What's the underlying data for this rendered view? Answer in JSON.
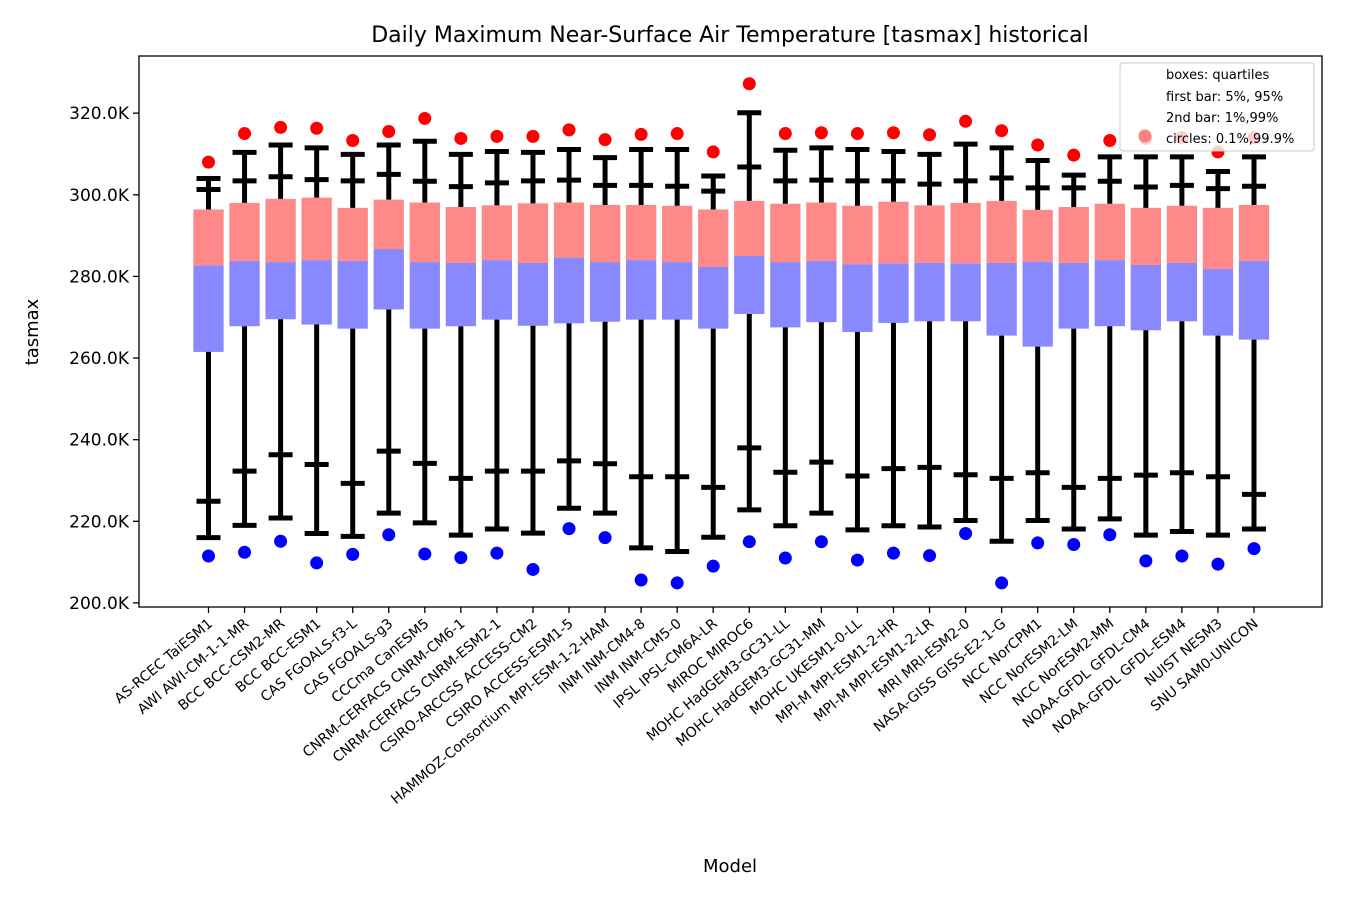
{
  "chart_data": {
    "type": "box",
    "title": "Daily Maximum Near-Surface Air Temperature [tasmax] historical",
    "xlabel": "Model",
    "ylabel": "tasmax",
    "ylim": [
      199,
      334
    ],
    "yticks": [
      200,
      220,
      240,
      260,
      280,
      300,
      320
    ],
    "ytick_labels": [
      "200.0K",
      "220.0K",
      "240.0K",
      "260.0K",
      "280.0K",
      "300.0K",
      "320.0K"
    ],
    "grid": false,
    "legend_position": "top-right",
    "legend": [
      {
        "label": "boxes: quartiles",
        "marker": "none"
      },
      {
        "label": "first bar: 5%, 95%",
        "marker": "none"
      },
      {
        "label": "2nd bar: 1%,99%",
        "marker": "none"
      },
      {
        "label": "circles: 0.1%,99.9%",
        "marker": "circle"
      }
    ],
    "colors": {
      "lower_box": "#8888ff",
      "upper_box": "#ff8888",
      "whisker": "#000000",
      "high_circle": "#ff0000",
      "low_circle": "#0000ff",
      "legend_circle": "#ff8080"
    },
    "models": [
      "AS-RCEC TaiESM1",
      "AWI AWI-CM-1-1-MR",
      "BCC BCC-CSM2-MR",
      "BCC BCC-ESM1",
      "CAS FGOALS-f3-L",
      "CAS FGOALS-g3",
      "CCCma CanESM5",
      "CNRM-CERFACS CNRM-CM6-1",
      "CNRM-CERFACS CNRM-ESM2-1",
      "CSIRO-ARCCSS ACCESS-CM2",
      "CSIRO ACCESS-ESM1-5",
      "HAMMOZ-Consortium MPI-ESM-1-2-HAM",
      "INM INM-CM4-8",
      "INM INM-CM5-0",
      "IPSL IPSL-CM6A-LR",
      "MIROC MIROC6",
      "MOHC HadGEM3-GC31-LL",
      "MOHC HadGEM3-GC31-MM",
      "MOHC UKESM1-0-LL",
      "MPI-M MPI-ESM1-2-HR",
      "MPI-M MPI-ESM1-2-LR",
      "MRI MRI-ESM2-0",
      "NASA-GISS GISS-E2-1-G",
      "NCC NorCPM1",
      "NCC NorESM2-LM",
      "NCC NorESM2-MM",
      "NOAA-GFDL GFDL-CM4",
      "NOAA-GFDL GFDL-ESM4",
      "NUIST NESM3",
      "SNU SAM0-UNICON"
    ],
    "q1": [
      261.5,
      267.8,
      269.5,
      268.2,
      267.2,
      271.9,
      267.2,
      267.8,
      269.4,
      267.9,
      268.5,
      268.9,
      269.4,
      269.4,
      267.2,
      270.8,
      267.5,
      268.8,
      266.4,
      268.6,
      269.0,
      269.0,
      265.5,
      262.8,
      267.2,
      267.8,
      266.8,
      269.0,
      265.5,
      264.5
    ],
    "median": [
      282.7,
      283.8,
      283.5,
      284.0,
      283.8,
      286.7,
      283.5,
      283.3,
      284.0,
      283.3,
      284.6,
      283.5,
      284.0,
      283.5,
      282.3,
      285.0,
      283.5,
      283.8,
      283.0,
      283.2,
      283.3,
      283.2,
      283.3,
      283.6,
      283.3,
      284.0,
      282.8,
      283.3,
      281.8,
      283.8
    ],
    "q3": [
      296.4,
      298.0,
      299.0,
      299.3,
      296.8,
      298.8,
      298.1,
      297.0,
      297.4,
      297.9,
      298.1,
      297.5,
      297.5,
      297.3,
      296.4,
      298.5,
      297.8,
      298.1,
      297.3,
      298.3,
      297.4,
      298.0,
      298.5,
      296.3,
      297.0,
      297.8,
      296.8,
      297.3,
      296.8,
      297.5
    ],
    "p5": [
      224.9,
      232.3,
      236.3,
      233.9,
      229.3,
      237.2,
      234.2,
      230.5,
      232.3,
      232.3,
      234.8,
      234.1,
      230.9,
      230.9,
      228.3,
      238.0,
      232.0,
      234.5,
      231.1,
      232.9,
      233.2,
      231.4,
      230.5,
      231.9,
      228.3,
      230.5,
      231.3,
      231.9,
      230.9,
      226.6
    ],
    "p95": [
      301.3,
      303.4,
      304.4,
      303.7,
      303.4,
      305.0,
      303.3,
      302.0,
      302.9,
      303.4,
      303.6,
      302.3,
      302.3,
      302.1,
      300.9,
      306.8,
      303.4,
      303.6,
      303.4,
      303.4,
      302.6,
      303.4,
      304.1,
      301.7,
      301.7,
      303.3,
      301.9,
      302.3,
      301.5,
      302.1
    ],
    "p1": [
      216.0,
      219.0,
      220.8,
      217.0,
      216.3,
      222.0,
      219.6,
      216.6,
      218.1,
      217.1,
      223.2,
      222.0,
      213.5,
      212.6,
      216.1,
      222.8,
      218.9,
      222.0,
      217.9,
      218.9,
      218.6,
      220.2,
      215.1,
      220.2,
      218.1,
      220.6,
      216.6,
      217.5,
      216.6,
      218.1
    ],
    "p99": [
      304.0,
      310.4,
      312.2,
      311.5,
      309.9,
      312.2,
      313.1,
      309.9,
      310.6,
      310.4,
      311.1,
      309.1,
      311.1,
      311.1,
      304.6,
      320.1,
      310.9,
      311.5,
      311.1,
      310.6,
      309.9,
      312.4,
      311.5,
      308.4,
      304.8,
      309.3,
      309.3,
      309.3,
      305.7,
      309.3
    ],
    "p0_1": [
      211.5,
      212.4,
      215.1,
      209.8,
      211.9,
      216.7,
      212.0,
      211.1,
      212.2,
      208.2,
      218.2,
      216.0,
      205.6,
      204.9,
      209.0,
      215.0,
      211.0,
      215.0,
      210.5,
      212.2,
      211.6,
      217.0,
      204.9,
      214.7,
      214.3,
      216.7,
      210.3,
      211.5,
      209.5,
      213.3
    ],
    "p99_9": [
      308.0,
      315.0,
      316.5,
      316.3,
      313.3,
      315.5,
      318.7,
      313.8,
      314.3,
      314.3,
      315.9,
      313.5,
      314.8,
      315.0,
      310.5,
      327.2,
      315.0,
      315.2,
      315.0,
      315.2,
      314.7,
      318.0,
      315.7,
      312.2,
      309.7,
      313.3,
      313.8,
      314.0,
      310.5,
      314.0
    ]
  }
}
